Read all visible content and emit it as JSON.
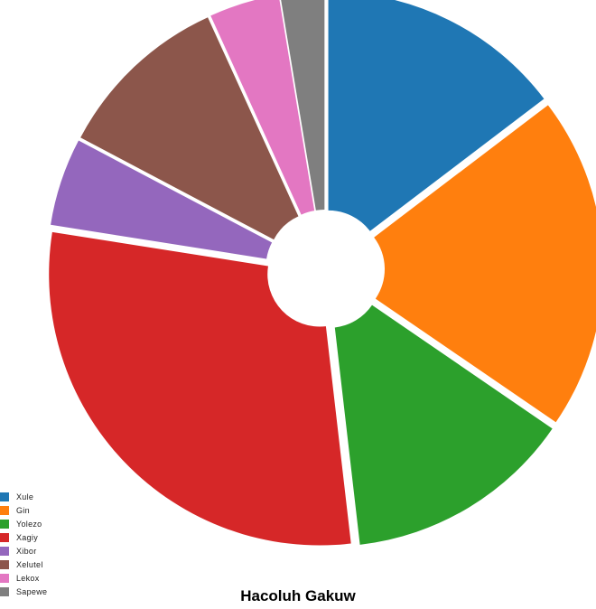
{
  "chart_data": {
    "type": "pie",
    "title": "Hacoluh Gakuw",
    "donut_hole": true,
    "exploded": true,
    "legend_position": "bottom-left",
    "slices": [
      {
        "label": "Xule",
        "value": 14.0,
        "color": "#1f77b4"
      },
      {
        "label": "Gin",
        "value": 19.0,
        "color": "#ff7f0e"
      },
      {
        "label": "Yolezo",
        "value": 13.0,
        "color": "#2ca02c"
      },
      {
        "label": "Xagiy",
        "value": 28.0,
        "color": "#d62728"
      },
      {
        "label": "Xibor",
        "value": 5.0,
        "color": "#9467bd"
      },
      {
        "label": "Xelutel",
        "value": 10.0,
        "color": "#8c564b"
      },
      {
        "label": "Lekox",
        "value": 4.0,
        "color": "#e377c2"
      },
      {
        "label": "Sapewe",
        "value": 2.5,
        "color": "#7f7f7f"
      }
    ]
  }
}
